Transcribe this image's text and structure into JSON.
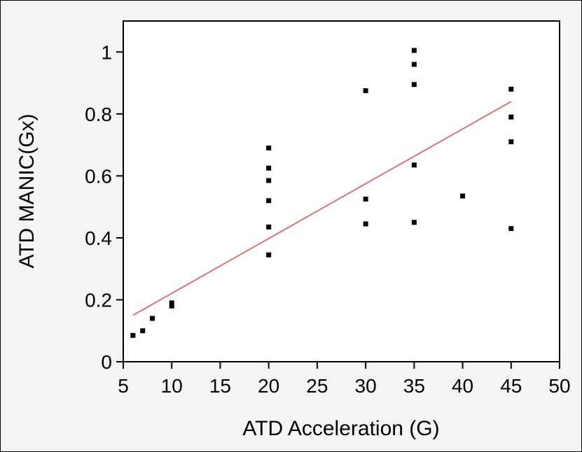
{
  "chart_data": {
    "type": "scatter",
    "title": "",
    "xlabel": "ATD Acceleration (G)",
    "ylabel": "ATD MANIC(Gx)",
    "xlim": [
      5,
      50
    ],
    "ylim": [
      0,
      1.1
    ],
    "xticks": [
      5,
      10,
      15,
      20,
      25,
      30,
      35,
      40,
      45,
      50
    ],
    "yticks": [
      0,
      0.2,
      0.4,
      0.6,
      0.8,
      1
    ],
    "ytick_labels": [
      "0",
      "0.2",
      "0.4",
      "0.6",
      "0.8",
      "1"
    ],
    "grid": false,
    "points": [
      {
        "x": 6,
        "y": 0.085
      },
      {
        "x": 7,
        "y": 0.1
      },
      {
        "x": 8,
        "y": 0.14
      },
      {
        "x": 10,
        "y": 0.18
      },
      {
        "x": 10,
        "y": 0.19
      },
      {
        "x": 20,
        "y": 0.345
      },
      {
        "x": 20,
        "y": 0.435
      },
      {
        "x": 20,
        "y": 0.52
      },
      {
        "x": 20,
        "y": 0.585
      },
      {
        "x": 20,
        "y": 0.625
      },
      {
        "x": 20,
        "y": 0.69
      },
      {
        "x": 30,
        "y": 0.445
      },
      {
        "x": 30,
        "y": 0.525
      },
      {
        "x": 30,
        "y": 0.875
      },
      {
        "x": 35,
        "y": 0.45
      },
      {
        "x": 35,
        "y": 0.635
      },
      {
        "x": 35,
        "y": 0.895
      },
      {
        "x": 35,
        "y": 0.96
      },
      {
        "x": 35,
        "y": 1.005
      },
      {
        "x": 40,
        "y": 0.535
      },
      {
        "x": 45,
        "y": 0.43
      },
      {
        "x": 45,
        "y": 0.71
      },
      {
        "x": 45,
        "y": 0.79
      },
      {
        "x": 45,
        "y": 0.88
      }
    ],
    "fit_line": {
      "x": [
        6,
        45
      ],
      "y": [
        0.15,
        0.84
      ]
    },
    "colors": {
      "points": "#000000",
      "fit_line": "#e0707a",
      "background": "#f4f4f4"
    }
  }
}
